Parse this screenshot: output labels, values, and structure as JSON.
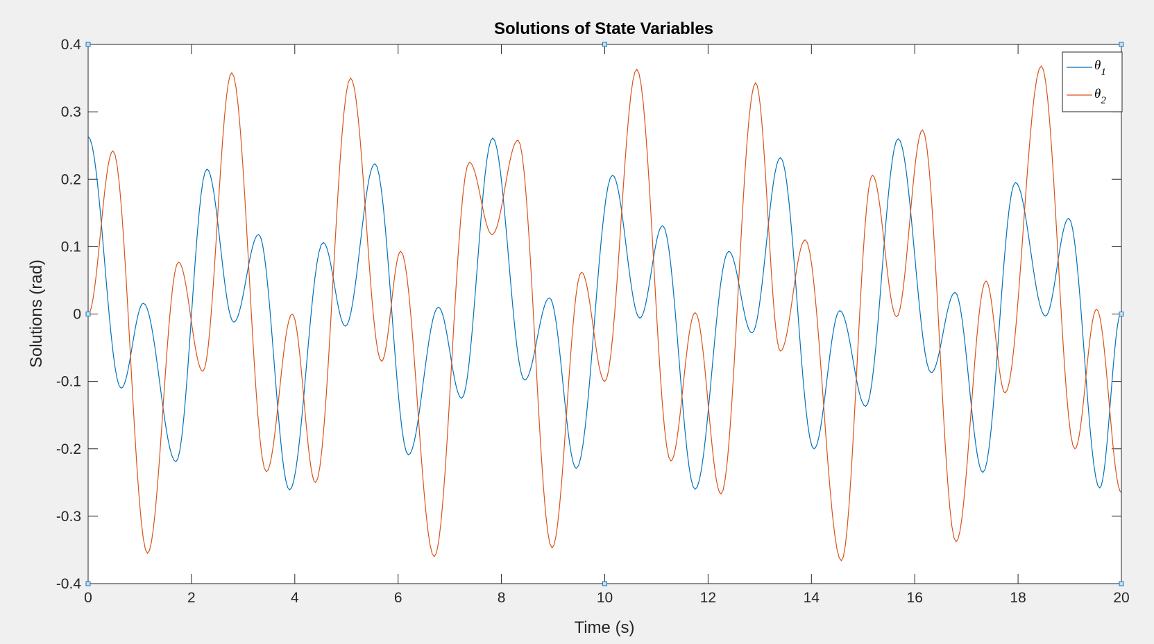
{
  "chart_data": {
    "type": "line",
    "title": "Solutions of State Variables",
    "xlabel": "Time (s)",
    "ylabel": "Solutions (rad)",
    "xlim": [
      0,
      20
    ],
    "ylim": [
      -0.4,
      0.4
    ],
    "xticks": [
      0,
      2,
      4,
      6,
      8,
      10,
      12,
      14,
      16,
      18,
      20
    ],
    "yticks": [
      -0.4,
      -0.3,
      -0.2,
      -0.1,
      0,
      0.1,
      0.2,
      0.3,
      0.4
    ],
    "xtick_labels": [
      "0",
      "2",
      "4",
      "6",
      "8",
      "10",
      "12",
      "14",
      "16",
      "18",
      "20"
    ],
    "ytick_labels": [
      "-0.4",
      "-0.3",
      "-0.2",
      "-0.1",
      "0",
      "0.1",
      "0.2",
      "0.3",
      "0.4"
    ],
    "grid": false,
    "legend_position": "top-right",
    "series": [
      {
        "name": "θ1",
        "legend_symbol": "θ",
        "legend_subscript": "1",
        "color": "#0072BD",
        "x": [
          0,
          0.64,
          1.07,
          1.7,
          2.3,
          2.82,
          3.3,
          3.9,
          4.55,
          4.98,
          5.55,
          6.2,
          6.78,
          7.23,
          7.83,
          8.45,
          8.93,
          9.45,
          10.15,
          10.68,
          11.12,
          11.75,
          12.4,
          12.85,
          13.4,
          14.05,
          14.55,
          15.05,
          15.68,
          16.32,
          16.78,
          17.32,
          17.95,
          18.53,
          18.98,
          19.58,
          20
        ],
        "y": [
          0.263,
          -0.11,
          0.016,
          -0.219,
          0.215,
          -0.012,
          0.118,
          -0.261,
          0.106,
          -0.018,
          0.223,
          -0.209,
          0.01,
          -0.125,
          0.261,
          -0.098,
          0.024,
          -0.229,
          0.206,
          -0.006,
          0.131,
          -0.26,
          0.093,
          -0.028,
          0.232,
          -0.2,
          0.005,
          -0.137,
          0.26,
          -0.087,
          0.032,
          -0.235,
          0.195,
          -0.003,
          0.142,
          -0.258,
          0.003
        ]
      },
      {
        "name": "θ2",
        "legend_symbol": "θ",
        "legend_subscript": "2",
        "color": "#D95319",
        "x": [
          0,
          0.48,
          1.15,
          1.75,
          2.22,
          2.78,
          3.45,
          3.95,
          4.4,
          5.08,
          5.68,
          6.05,
          6.7,
          7.38,
          7.82,
          8.32,
          8.98,
          9.55,
          10.0,
          10.62,
          11.28,
          11.75,
          12.25,
          12.92,
          13.4,
          13.88,
          14.58,
          15.18,
          15.65,
          16.15,
          16.8,
          17.38,
          17.75,
          18.45,
          19.1,
          19.52,
          20
        ],
        "y": [
          0.0,
          0.242,
          -0.355,
          0.077,
          -0.085,
          0.358,
          -0.234,
          0.0,
          -0.25,
          0.35,
          -0.07,
          0.093,
          -0.36,
          0.225,
          0.118,
          0.258,
          -0.347,
          0.062,
          -0.1,
          0.363,
          -0.218,
          0.002,
          -0.267,
          0.343,
          -0.055,
          0.11,
          -0.366,
          0.206,
          -0.004,
          0.273,
          -0.338,
          0.049,
          -0.117,
          0.368,
          -0.2,
          0.007,
          -0.265
        ]
      }
    ]
  }
}
